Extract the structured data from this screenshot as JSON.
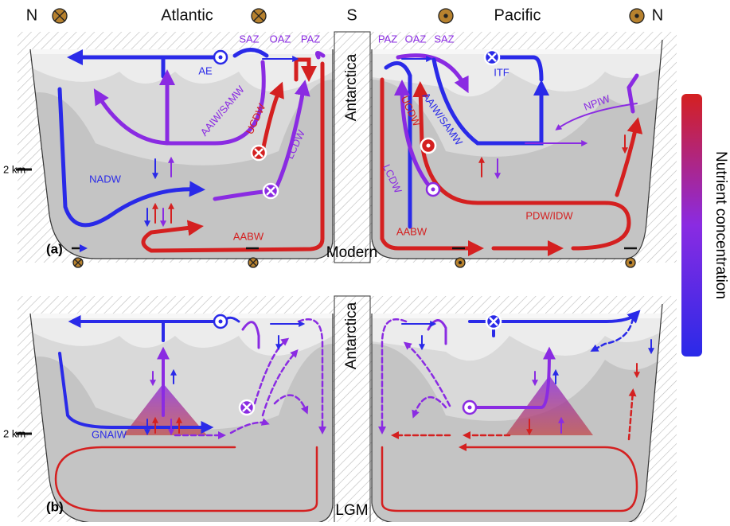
{
  "header": {
    "north_left": "N",
    "atlantic": "Atlantic",
    "south": "S",
    "pacific": "Pacific",
    "north_right": "N"
  },
  "legend": {
    "label": "Nutrient concentration"
  },
  "panels": [
    {
      "letter": "(a)",
      "name": "Modern",
      "continent": "Antarctica",
      "depth_label": "2 km",
      "labels": [
        "SAZ",
        "OAZ",
        "PAZ",
        "PAZ",
        "OAZ",
        "SAZ",
        "AE",
        "ITF",
        "AAIW/SAMW",
        "AAIW/SAMW",
        "NPIW",
        "UCDW",
        "UCDW",
        "LCDW",
        "LCDW",
        "NADW",
        "PDW/IDW",
        "AABW",
        "AABW"
      ]
    },
    {
      "letter": "(b)",
      "name": "LGM",
      "continent": "Antarctica",
      "depth_label": "2 km",
      "labels": [
        "GNAIW"
      ]
    }
  ]
}
